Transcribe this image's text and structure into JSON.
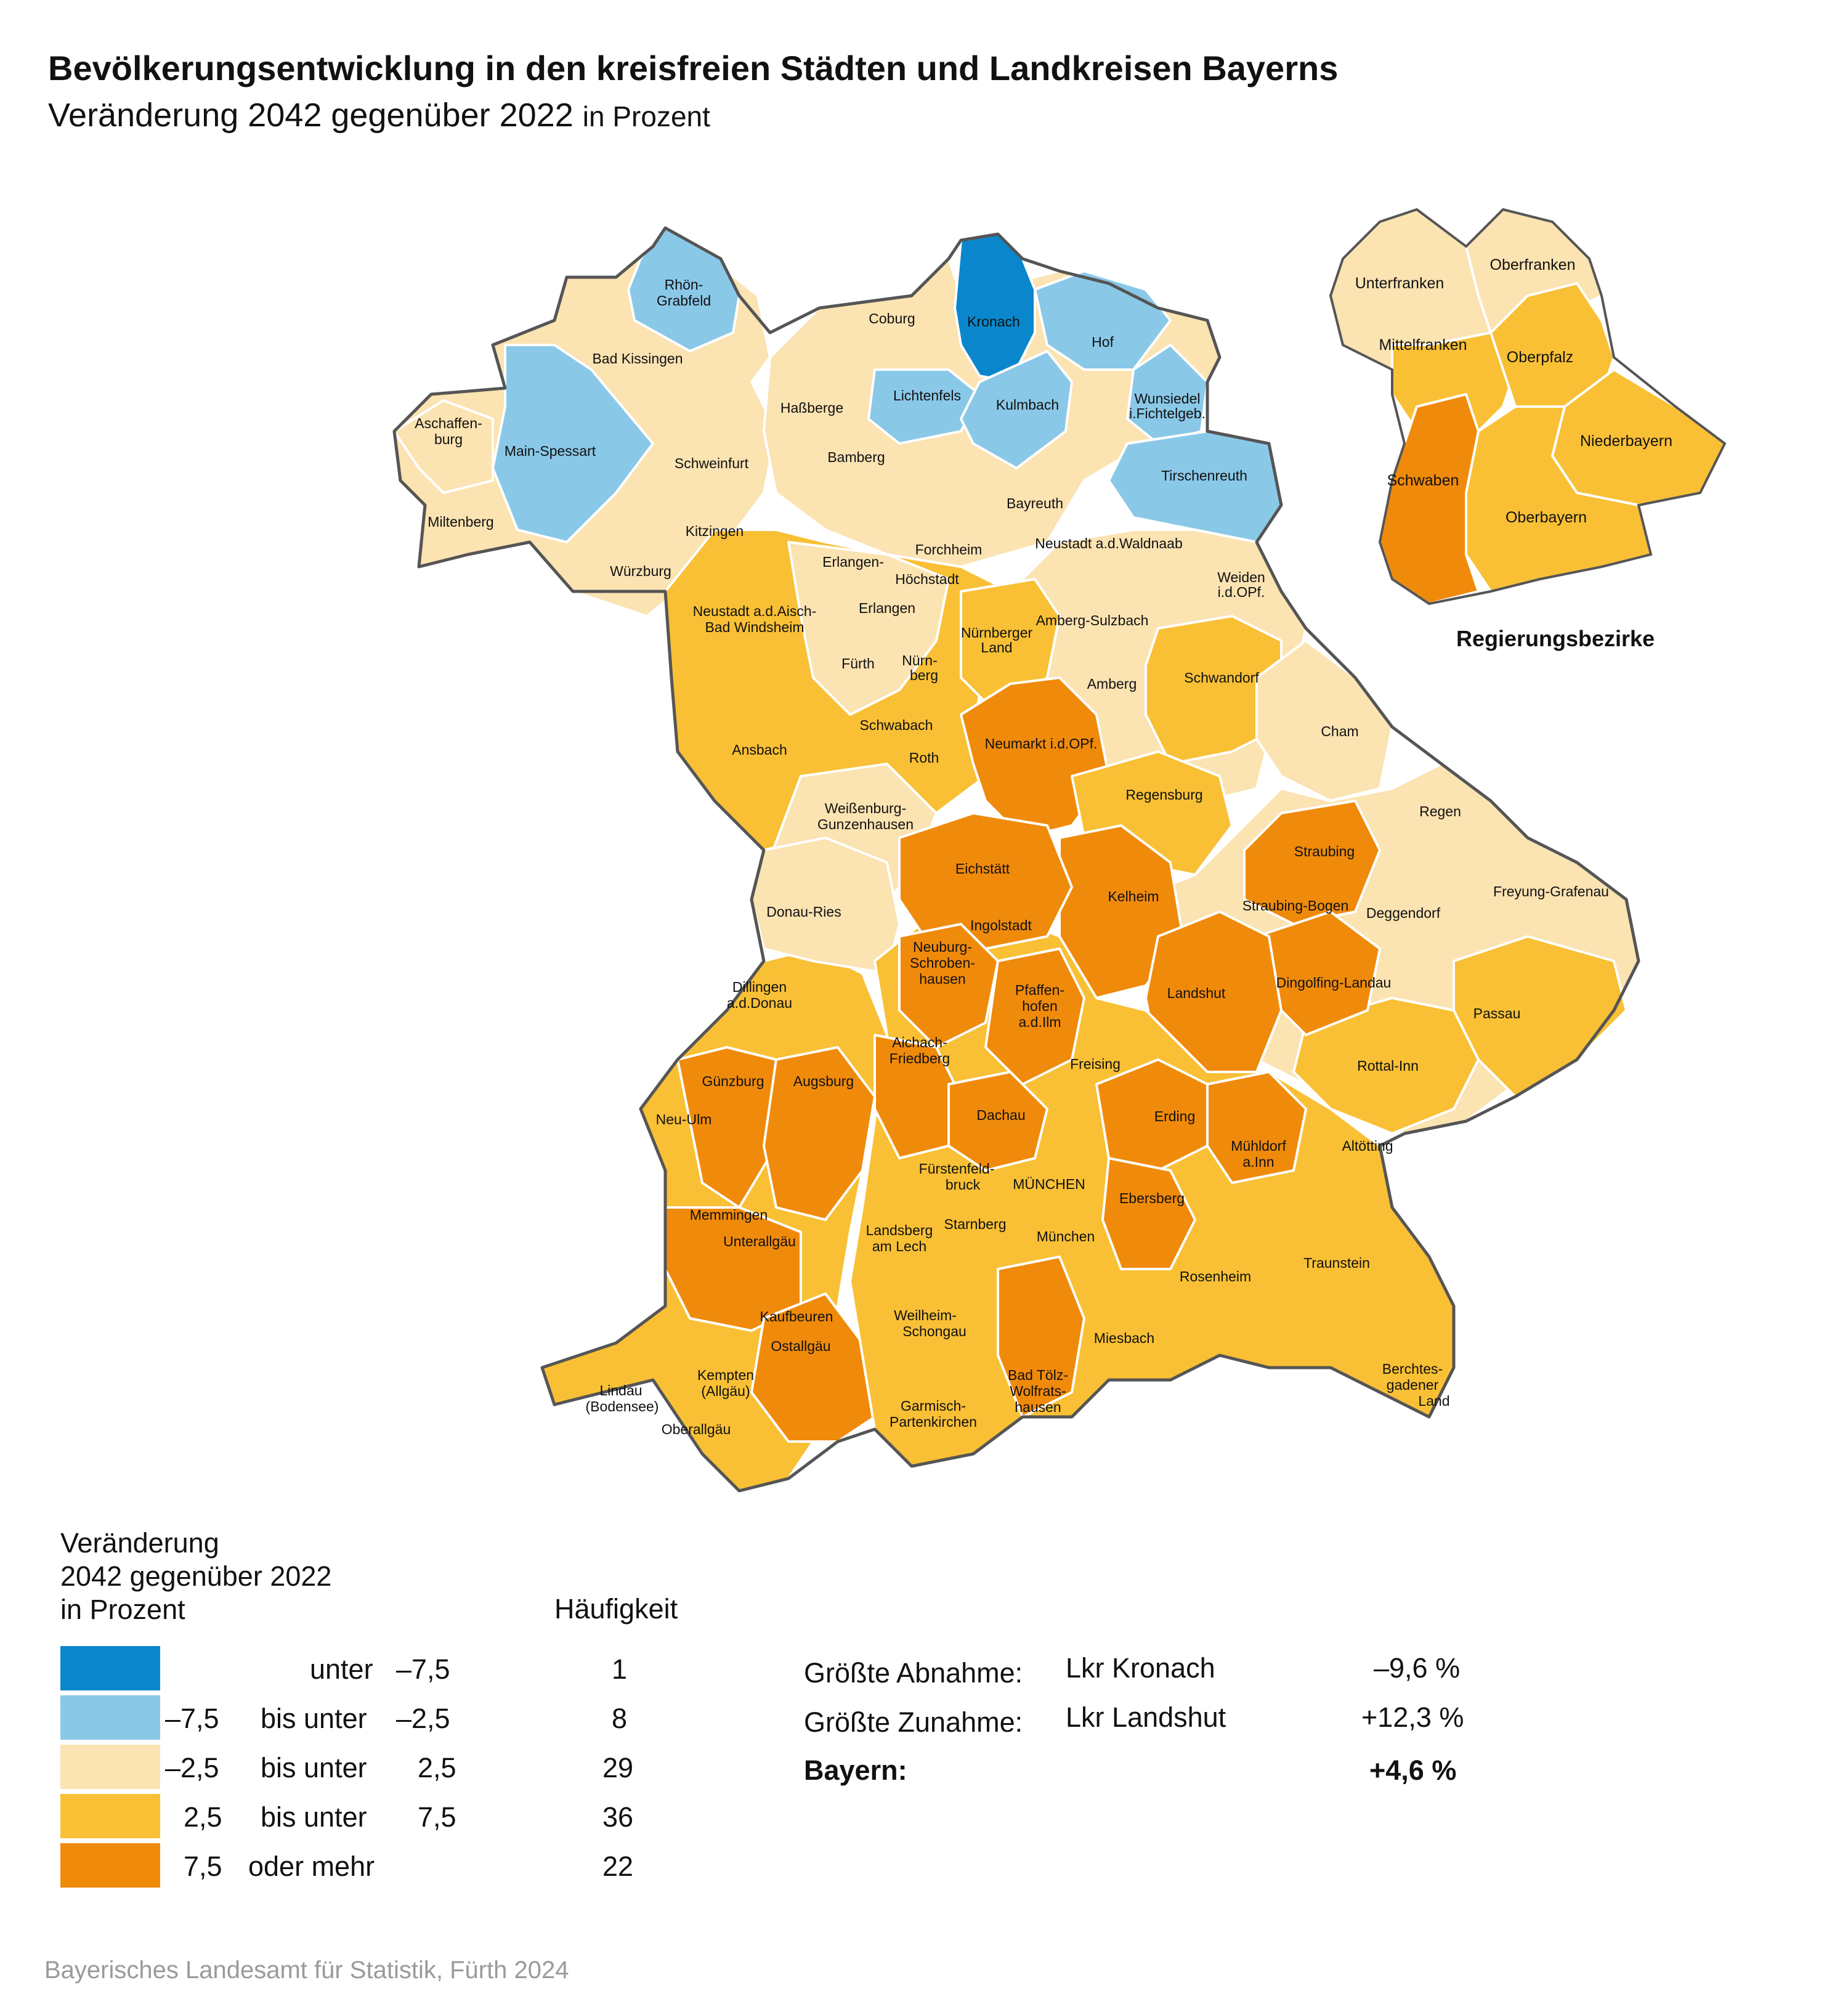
{
  "title": "Bevölkerungsentwicklung in den kreisfreien Städten und Landkreisen Bayerns",
  "subtitle_main": "Veränderung 2042 gegenüber 2022",
  "subtitle_unit": "in Prozent",
  "colors": {
    "class1": "#0a87cc",
    "class2": "#8ac8e8",
    "class3": "#fbe3b2",
    "class4": "#f9c035",
    "class5": "#f08a0b",
    "border": "#555555"
  },
  "legend": {
    "title_line1": "Veränderung",
    "title_line2": "2042 gegenüber 2022",
    "title_line3": "in Prozent",
    "freq_header": "Häufigkeit",
    "classes": [
      {
        "range_a": "",
        "range_b": "unter",
        "range_c": "–7,5",
        "count": "1",
        "color": "#0a87cc"
      },
      {
        "range_a": "–7,5",
        "range_b": "bis unter",
        "range_c": "–2,5",
        "count": "8",
        "color": "#8ac8e8"
      },
      {
        "range_a": "–2,5",
        "range_b": "bis unter",
        "range_c": "2,5",
        "count": "29",
        "color": "#fbe3b2"
      },
      {
        "range_a": "2,5",
        "range_b": "bis unter",
        "range_c": "7,5",
        "count": "36",
        "color": "#f9c035"
      },
      {
        "range_a": "7,5",
        "range_b": "oder mehr",
        "range_c": "",
        "count": "22",
        "color": "#f08a0b"
      }
    ]
  },
  "stats": {
    "decrease_label": "Größte Abnahme:",
    "decrease_region": "Lkr Kronach",
    "decrease_value": "–9,6 %",
    "increase_label": "Größte Zunahme:",
    "increase_region": "Lkr Landshut",
    "increase_value": "+12,3 %",
    "bayern_label": "Bayern:",
    "bayern_value": "+4,6 %"
  },
  "inset_title": "Regierungsbezirke",
  "inset_regions": [
    "Unterfranken",
    "Oberfranken",
    "Mittelfranken",
    "Oberpfalz",
    "Niederbayern",
    "Schwaben",
    "Oberbayern"
  ],
  "source": "Bayerisches Landesamt für Statistik, Fürth 2024",
  "districts": [
    {
      "name": "Rhön-Grabfeld",
      "class": 2
    },
    {
      "name": "Bad Kissingen",
      "class": 3
    },
    {
      "name": "Aschaffenburg",
      "class": 3
    },
    {
      "name": "Main-Spessart",
      "class": 2
    },
    {
      "name": "Miltenberg",
      "class": 3
    },
    {
      "name": "Schweinfurt",
      "class": 3
    },
    {
      "name": "Haßberge",
      "class": 3
    },
    {
      "name": "Coburg",
      "class": 3
    },
    {
      "name": "Kronach",
      "class": 1
    },
    {
      "name": "Hof",
      "class": 2
    },
    {
      "name": "Lichtenfels",
      "class": 2
    },
    {
      "name": "Kulmbach",
      "class": 2
    },
    {
      "name": "Wunsiedel i.Fichtelgeb.",
      "class": 2
    },
    {
      "name": "Tirschenreuth",
      "class": 2
    },
    {
      "name": "Bamberg",
      "class": 3
    },
    {
      "name": "Bayreuth",
      "class": 3
    },
    {
      "name": "Würzburg",
      "class": 3
    },
    {
      "name": "Kitzingen",
      "class": 4
    },
    {
      "name": "Erlangen-Höchstadt",
      "class": 3
    },
    {
      "name": "Forchheim",
      "class": 3
    },
    {
      "name": "Neustadt a.d.Waldnaab",
      "class": 3
    },
    {
      "name": "Weiden i.d.OPf.",
      "class": 3
    },
    {
      "name": "Neustadt a.d.Aisch-Bad Windsheim",
      "class": 4
    },
    {
      "name": "Erlangen",
      "class": 3
    },
    {
      "name": "Nürnberger Land",
      "class": 4
    },
    {
      "name": "Amberg-Sulzbach",
      "class": 3
    },
    {
      "name": "Fürth",
      "class": 3
    },
    {
      "name": "Nürnberg",
      "class": 3
    },
    {
      "name": "Amberg",
      "class": 3
    },
    {
      "name": "Schwandorf",
      "class": 4
    },
    {
      "name": "Ansbach",
      "class": 4
    },
    {
      "name": "Schwabach",
      "class": 4
    },
    {
      "name": "Neumarkt i.d.OPf.",
      "class": 5
    },
    {
      "name": "Cham",
      "class": 3
    },
    {
      "name": "Roth",
      "class": 4
    },
    {
      "name": "Weißenburg-Gunzenhausen",
      "class": 3
    },
    {
      "name": "Regensburg",
      "class": 4
    },
    {
      "name": "Regen",
      "class": 3
    },
    {
      "name": "Eichstätt",
      "class": 5
    },
    {
      "name": "Straubing",
      "class": 5
    },
    {
      "name": "Kelheim",
      "class": 5
    },
    {
      "name": "Donau-Ries",
      "class": 3
    },
    {
      "name": "Freyung-Grafenau",
      "class": 3
    },
    {
      "name": "Ingolstadt",
      "class": 5
    },
    {
      "name": "Straubing-Bogen",
      "class": 5
    },
    {
      "name": "Deggendorf",
      "class": 3
    },
    {
      "name": "Neuburg-Schrobenhausen",
      "class": 5
    },
    {
      "name": "Dillingen a.d.Donau",
      "class": 4
    },
    {
      "name": "Pfaffenhofen a.d.Ilm",
      "class": 5
    },
    {
      "name": "Landshut",
      "class": 5
    },
    {
      "name": "Dingolfing-Landau",
      "class": 5
    },
    {
      "name": "Passau",
      "class": 4
    },
    {
      "name": "Aichach-Friedberg",
      "class": 5
    },
    {
      "name": "Freising",
      "class": 4
    },
    {
      "name": "Rottal-Inn",
      "class": 4
    },
    {
      "name": "Günzburg",
      "class": 5
    },
    {
      "name": "Augsburg",
      "class": 5
    },
    {
      "name": "Dachau",
      "class": 5
    },
    {
      "name": "Erding",
      "class": 5
    },
    {
      "name": "Neu-Ulm",
      "class": 4
    },
    {
      "name": "Altötting",
      "class": 4
    },
    {
      "name": "Mühldorf a.Inn",
      "class": 5
    },
    {
      "name": "Fürstenfeldbruck",
      "class": 4
    },
    {
      "name": "MÜNCHEN",
      "class": 4
    },
    {
      "name": "Memmingen",
      "class": 5
    },
    {
      "name": "Ebersberg",
      "class": 5
    },
    {
      "name": "Unterallgäu",
      "class": 5
    },
    {
      "name": "Landsberg am Lech",
      "class": 4
    },
    {
      "name": "Starnberg",
      "class": 4
    },
    {
      "name": "München",
      "class": 4
    },
    {
      "name": "Traunstein",
      "class": 4
    },
    {
      "name": "Rosenheim",
      "class": 4
    },
    {
      "name": "Kaufbeuren",
      "class": 5
    },
    {
      "name": "Weilheim-Schongau",
      "class": 4
    },
    {
      "name": "Ostallgäu",
      "class": 5
    },
    {
      "name": "Miesbach",
      "class": 4
    },
    {
      "name": "Kempten (Allgäu)",
      "class": 4
    },
    {
      "name": "Lindau (Bodensee)",
      "class": 4
    },
    {
      "name": "Bad Tölz-Wolfratshausen",
      "class": 5
    },
    {
      "name": "Berchtesgadener Land",
      "class": 4
    },
    {
      "name": "Oberallgäu",
      "class": 4
    },
    {
      "name": "Garmisch-Partenkirchen",
      "class": 4
    }
  ]
}
